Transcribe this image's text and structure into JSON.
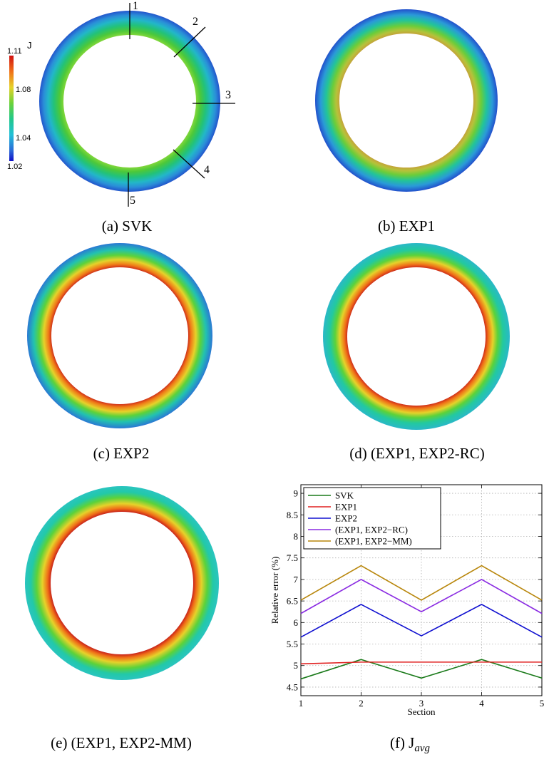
{
  "panels": [
    {
      "id": "a",
      "caption": "(a) SVK"
    },
    {
      "id": "b",
      "caption": "(b) EXP1"
    },
    {
      "id": "c",
      "caption": "(c) EXP2"
    },
    {
      "id": "d",
      "caption": "(d) (EXP1, EXP2-RC)"
    },
    {
      "id": "e",
      "caption": "(e) (EXP1, EXP2-MM)"
    },
    {
      "id": "f",
      "caption_main": "(f) J",
      "caption_sub": "avg"
    }
  ],
  "colorbar": {
    "title": "J",
    "ticks": [
      "1.11",
      "1.08",
      "1.04",
      "1.02"
    ]
  },
  "sections": [
    "1",
    "2",
    "3",
    "4",
    "5"
  ],
  "chart_data": {
    "type": "line",
    "xlabel": "Section",
    "ylabel": "Relative error (%)",
    "x": [
      1,
      2,
      3,
      4,
      5
    ],
    "xlim": [
      1,
      5
    ],
    "ylim": [
      4.3,
      9.2
    ],
    "xticks": [
      "1",
      "2",
      "3",
      "4",
      "5"
    ],
    "yticks": [
      "4.5",
      "5",
      "5.5",
      "6",
      "6.5",
      "7",
      "7.5",
      "8",
      "8.5",
      "9"
    ],
    "grid": true,
    "legend_position": "top-left",
    "series": [
      {
        "name": "SVK",
        "color": "#1a7a1a",
        "values": [
          4.69,
          5.14,
          4.71,
          5.14,
          4.71
        ]
      },
      {
        "name": "EXP1",
        "color": "#e02020",
        "values": [
          5.04,
          5.08,
          5.08,
          5.08,
          5.08
        ]
      },
      {
        "name": "EXP2",
        "color": "#1010d0",
        "values": [
          5.66,
          6.42,
          5.69,
          6.42,
          5.66
        ]
      },
      {
        "name": "(EXP1, EXP2−RC)",
        "color": "#8a2be2",
        "values": [
          6.21,
          7.0,
          6.25,
          7.0,
          6.21
        ]
      },
      {
        "name": "(EXP1, EXP2−MM)",
        "color": "#b8860b",
        "values": [
          6.52,
          7.32,
          6.52,
          7.32,
          6.52
        ]
      }
    ]
  }
}
